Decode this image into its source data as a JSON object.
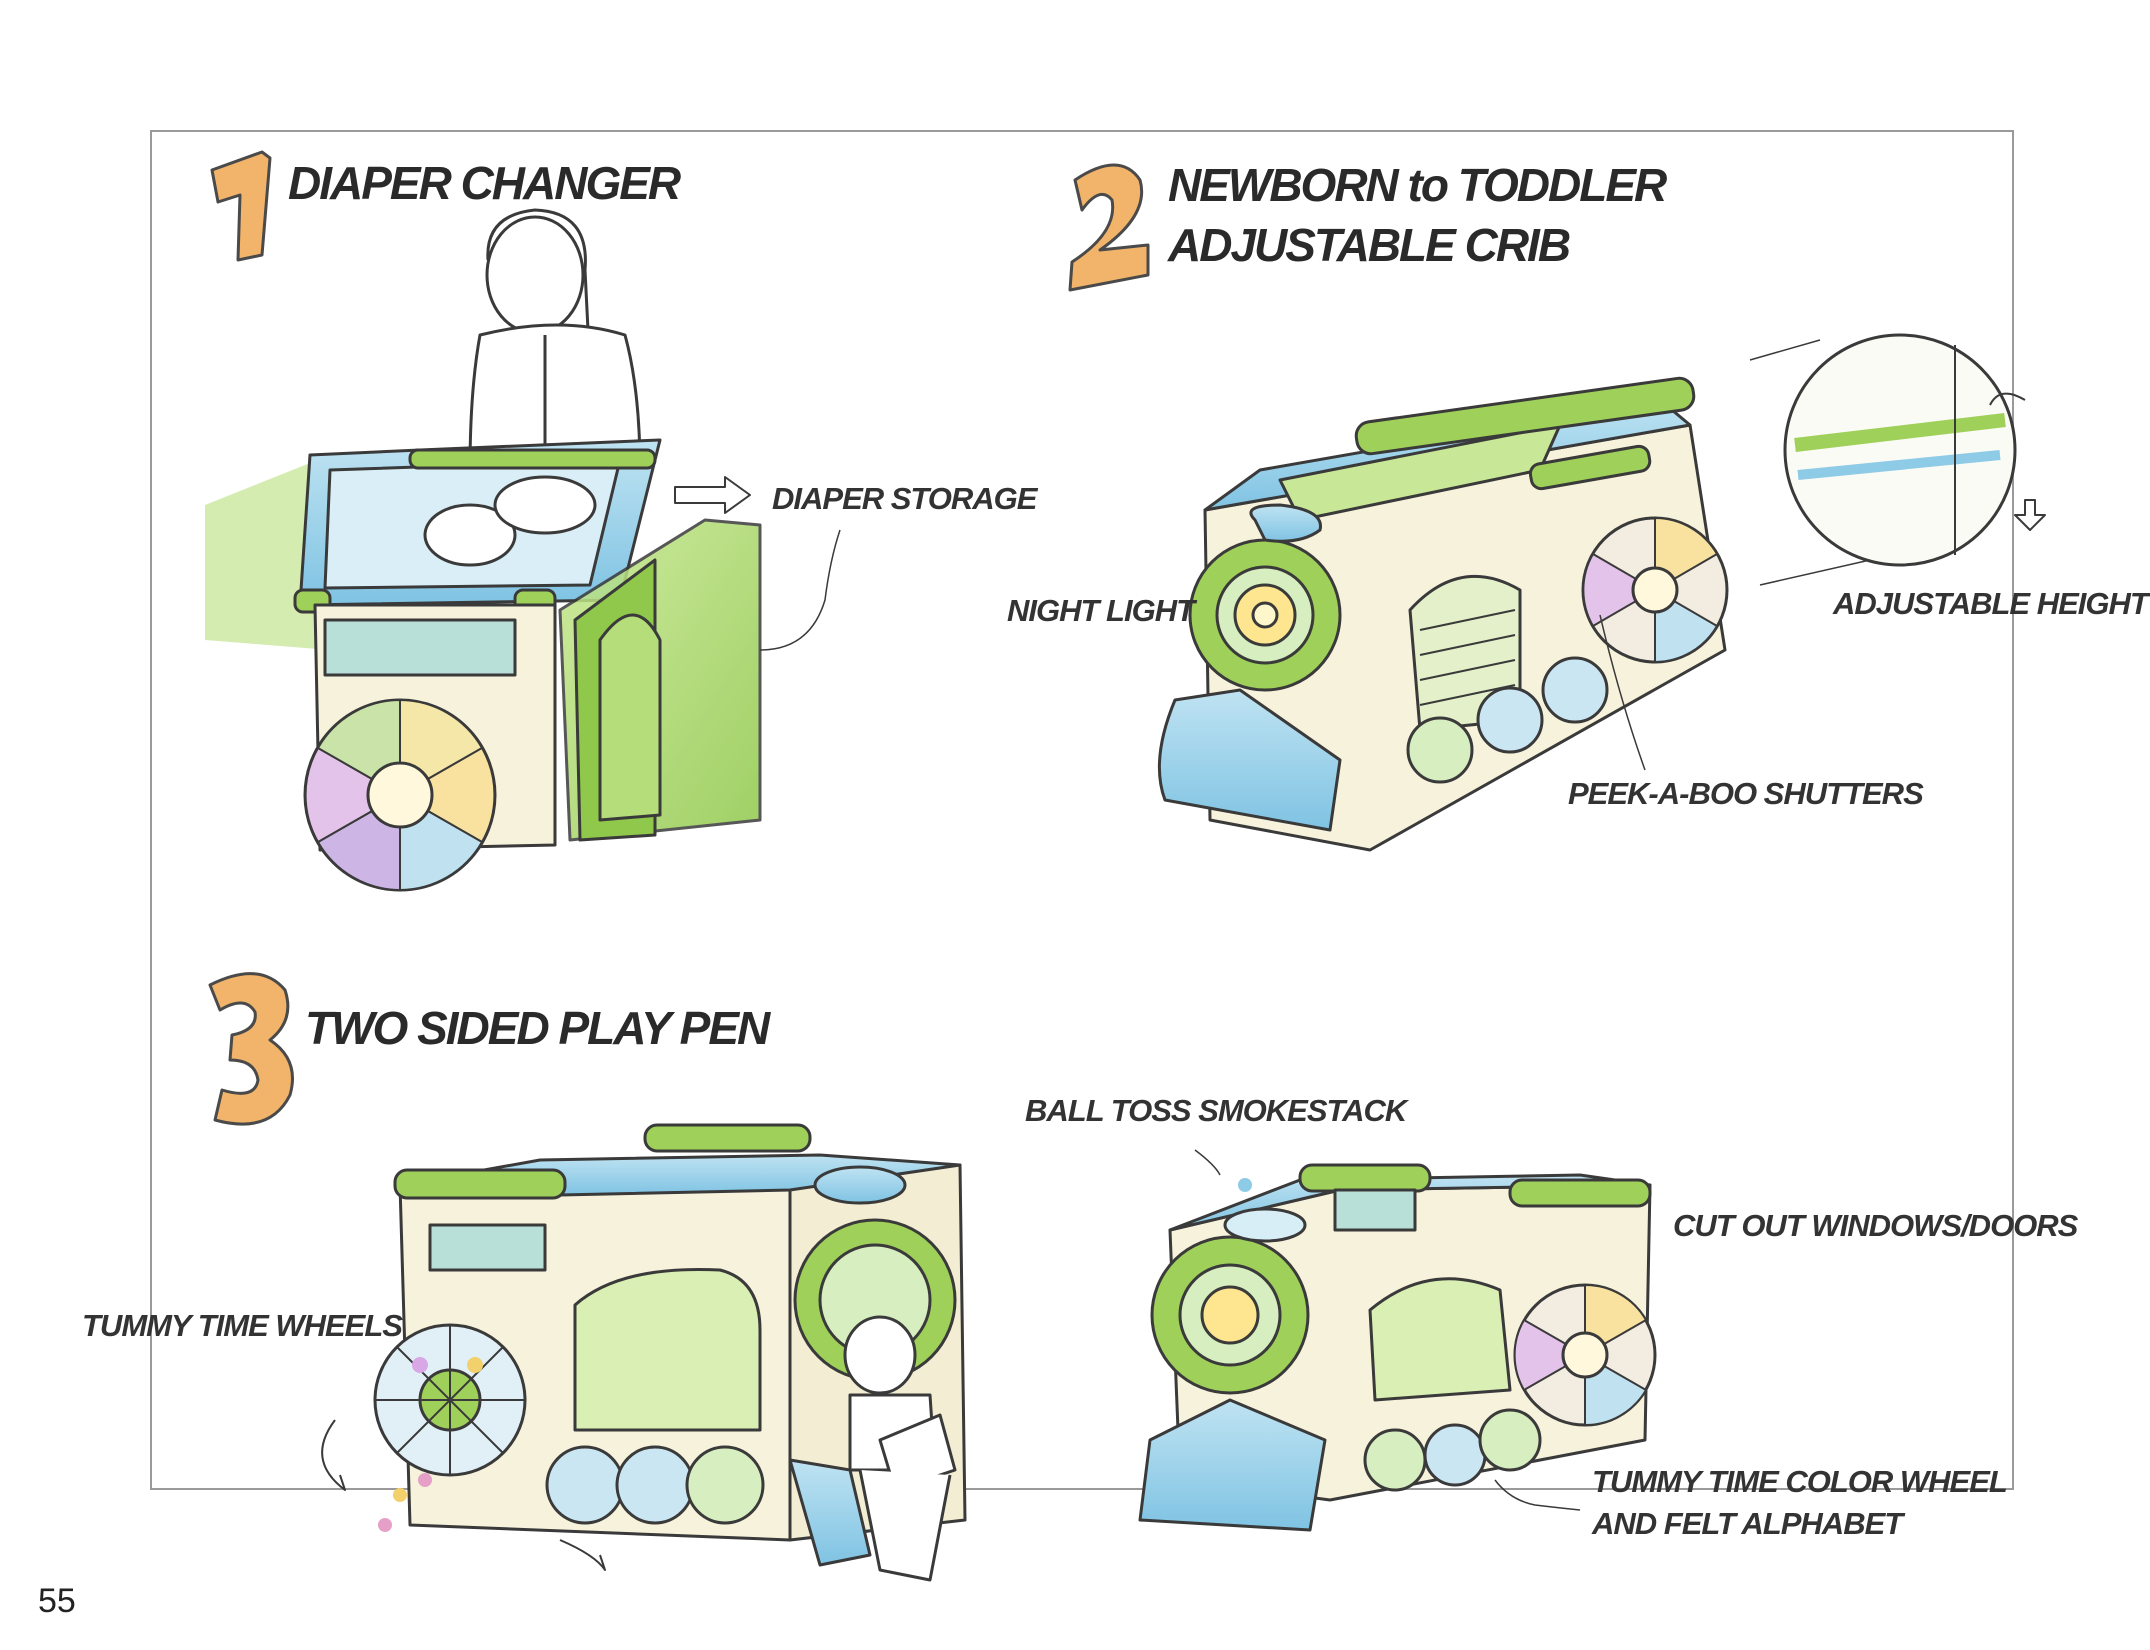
{
  "page_number": "55",
  "sections": [
    {
      "number": "1",
      "title": "DIAPER CHANGER"
    },
    {
      "number": "2",
      "title_line1": "NEWBORN to TODDLER",
      "title_line2": "ADJUSTABLE CRIB"
    },
    {
      "number": "3",
      "title": "TWO SIDED PLAY PEN"
    }
  ],
  "callouts": {
    "diaper_storage": "DIAPER STORAGE",
    "night_light": "NIGHT LIGHT",
    "adjustable_height": "ADJUSTABLE HEIGHT",
    "peek_a_boo_shutters": "PEEK-A-BOO SHUTTERS",
    "ball_toss_smokestack": "BALL TOSS SMOKESTACK",
    "cut_out_windows_doors": "CUT OUT WINDOWS/DOORS",
    "tummy_time_wheels": "TUMMY TIME WHEELS",
    "tummy_time_color_wheel_line1": "TUMMY TIME COLOR WHEEL",
    "tummy_time_color_wheel_line2": "AND FELT ALPHABET"
  },
  "colors": {
    "accent_orange": "#f2b46a",
    "green": "#9fd05a",
    "blue": "#8ecbe6",
    "cream": "#f7f2dc",
    "ink": "#3a3a3a"
  }
}
